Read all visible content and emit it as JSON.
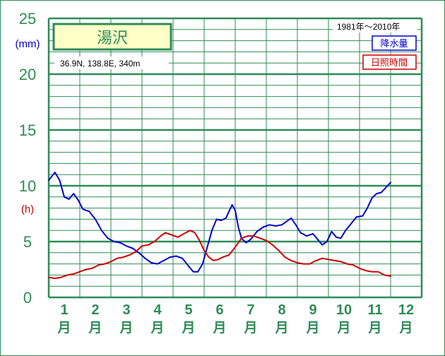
{
  "chart_data": {
    "type": "line",
    "station": "湯沢",
    "location": "36.9N,  138.8E,  340m",
    "period": "1981年〜2010年",
    "y_units": [
      "(mm)",
      "(h)"
    ],
    "ylim": [
      0,
      25
    ],
    "yticks": [
      "0",
      "5",
      "10",
      "15",
      "20",
      "25"
    ],
    "months": [
      "1",
      "2",
      "3",
      "4",
      "5",
      "6",
      "7",
      "8",
      "9",
      "10",
      "11",
      "12"
    ],
    "month_suffix": "月",
    "x_range": [
      0.5,
      12.5
    ],
    "series": [
      {
        "name": "降水量",
        "color": "#0000cc",
        "points": [
          [
            0.5,
            10.5
          ],
          [
            0.7,
            11.2
          ],
          [
            0.85,
            10.5
          ],
          [
            1.0,
            9.0
          ],
          [
            1.15,
            8.8
          ],
          [
            1.3,
            9.3
          ],
          [
            1.45,
            8.7
          ],
          [
            1.6,
            7.9
          ],
          [
            1.8,
            7.7
          ],
          [
            2.0,
            7.0
          ],
          [
            2.2,
            6.0
          ],
          [
            2.4,
            5.3
          ],
          [
            2.6,
            5.0
          ],
          [
            2.8,
            4.9
          ],
          [
            3.0,
            4.6
          ],
          [
            3.2,
            4.4
          ],
          [
            3.4,
            4.0
          ],
          [
            3.6,
            3.5
          ],
          [
            3.8,
            3.1
          ],
          [
            4.0,
            3.0
          ],
          [
            4.2,
            3.3
          ],
          [
            4.4,
            3.6
          ],
          [
            4.6,
            3.7
          ],
          [
            4.8,
            3.5
          ],
          [
            5.0,
            2.8
          ],
          [
            5.15,
            2.3
          ],
          [
            5.3,
            2.3
          ],
          [
            5.45,
            3.0
          ],
          [
            5.6,
            4.5
          ],
          [
            5.75,
            6.0
          ],
          [
            5.9,
            7.0
          ],
          [
            6.05,
            6.9
          ],
          [
            6.2,
            7.1
          ],
          [
            6.4,
            8.3
          ],
          [
            6.5,
            7.8
          ],
          [
            6.6,
            6.3
          ],
          [
            6.7,
            5.3
          ],
          [
            6.85,
            4.9
          ],
          [
            7.0,
            5.2
          ],
          [
            7.2,
            5.9
          ],
          [
            7.4,
            6.3
          ],
          [
            7.6,
            6.5
          ],
          [
            7.8,
            6.4
          ],
          [
            8.0,
            6.5
          ],
          [
            8.15,
            6.8
          ],
          [
            8.3,
            7.1
          ],
          [
            8.45,
            6.5
          ],
          [
            8.6,
            5.8
          ],
          [
            8.8,
            5.5
          ],
          [
            9.0,
            5.7
          ],
          [
            9.15,
            5.2
          ],
          [
            9.3,
            4.7
          ],
          [
            9.45,
            5.0
          ],
          [
            9.6,
            5.9
          ],
          [
            9.75,
            5.4
          ],
          [
            9.9,
            5.3
          ],
          [
            10.05,
            6.0
          ],
          [
            10.2,
            6.5
          ],
          [
            10.4,
            7.2
          ],
          [
            10.6,
            7.3
          ],
          [
            10.75,
            8.0
          ],
          [
            10.9,
            8.9
          ],
          [
            11.05,
            9.3
          ],
          [
            11.2,
            9.4
          ],
          [
            11.4,
            10.0
          ],
          [
            11.5,
            10.3
          ]
        ]
      },
      {
        "name": "日照時間",
        "color": "#cc0000",
        "points": [
          [
            0.5,
            1.8
          ],
          [
            0.7,
            1.7
          ],
          [
            0.9,
            1.8
          ],
          [
            1.1,
            2.0
          ],
          [
            1.3,
            2.1
          ],
          [
            1.5,
            2.3
          ],
          [
            1.7,
            2.5
          ],
          [
            1.9,
            2.6
          ],
          [
            2.1,
            2.9
          ],
          [
            2.3,
            3.0
          ],
          [
            2.5,
            3.2
          ],
          [
            2.7,
            3.5
          ],
          [
            2.9,
            3.6
          ],
          [
            3.1,
            3.8
          ],
          [
            3.3,
            4.1
          ],
          [
            3.5,
            4.6
          ],
          [
            3.7,
            4.7
          ],
          [
            3.9,
            5.0
          ],
          [
            4.1,
            5.5
          ],
          [
            4.25,
            5.8
          ],
          [
            4.45,
            5.6
          ],
          [
            4.65,
            5.4
          ],
          [
            4.85,
            5.7
          ],
          [
            5.05,
            6.0
          ],
          [
            5.2,
            5.8
          ],
          [
            5.35,
            5.1
          ],
          [
            5.5,
            4.2
          ],
          [
            5.65,
            3.6
          ],
          [
            5.8,
            3.3
          ],
          [
            5.95,
            3.4
          ],
          [
            6.1,
            3.6
          ],
          [
            6.3,
            3.8
          ],
          [
            6.5,
            4.5
          ],
          [
            6.7,
            5.3
          ],
          [
            6.9,
            5.5
          ],
          [
            7.1,
            5.5
          ],
          [
            7.3,
            5.3
          ],
          [
            7.5,
            5.1
          ],
          [
            7.7,
            4.7
          ],
          [
            7.9,
            4.2
          ],
          [
            8.1,
            3.6
          ],
          [
            8.3,
            3.3
          ],
          [
            8.5,
            3.1
          ],
          [
            8.7,
            3.0
          ],
          [
            8.9,
            3.0
          ],
          [
            9.1,
            3.3
          ],
          [
            9.3,
            3.5
          ],
          [
            9.5,
            3.4
          ],
          [
            9.7,
            3.3
          ],
          [
            9.9,
            3.2
          ],
          [
            10.1,
            3.0
          ],
          [
            10.3,
            2.9
          ],
          [
            10.5,
            2.6
          ],
          [
            10.7,
            2.4
          ],
          [
            10.9,
            2.3
          ],
          [
            11.1,
            2.3
          ],
          [
            11.3,
            2.0
          ],
          [
            11.5,
            1.9
          ]
        ]
      }
    ],
    "grid": true,
    "colors": {
      "grid": "#2e8b57",
      "title_box": "#ffffc8",
      "text": "#2e8b57"
    }
  }
}
